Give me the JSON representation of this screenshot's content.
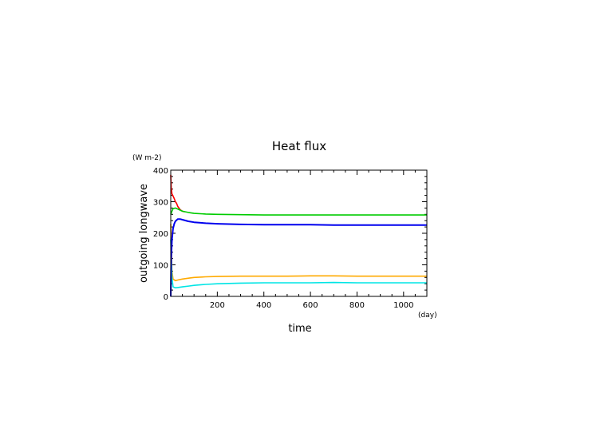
{
  "chart_data": {
    "type": "line",
    "title": "Heat flux",
    "xlabel": "time",
    "ylabel": "outgoing longwave",
    "xunit": "(day)",
    "yunit": "(W m-2)",
    "xlim": [
      0,
      1100
    ],
    "ylim": [
      0,
      400
    ],
    "xticks": [
      "200",
      "400",
      "600",
      "800",
      "1000"
    ],
    "yticks": [
      "0",
      "100",
      "200",
      "300",
      "400"
    ],
    "grid": false,
    "series": [
      {
        "color": "#ff0000",
        "x": [
          0,
          2,
          5,
          10,
          15,
          20,
          25,
          30,
          40,
          50,
          60
        ],
        "y": [
          385,
          345,
          325,
          318,
          310,
          300,
          295,
          285,
          275,
          270,
          268
        ]
      },
      {
        "color": "#00cc00",
        "x": [
          0,
          5,
          10,
          20,
          30,
          50,
          75,
          100,
          150,
          200,
          300,
          400,
          500,
          600,
          700,
          800,
          900,
          1000,
          1100
        ],
        "y": [
          260,
          270,
          278,
          280,
          277,
          270,
          266,
          263,
          261,
          260,
          259,
          258,
          258,
          258,
          258,
          258,
          258,
          258,
          258
        ]
      },
      {
        "color": "#ffaa00",
        "x": [
          0,
          5,
          10,
          20,
          30,
          50,
          80,
          100,
          150,
          200,
          300,
          400,
          500,
          600,
          700,
          800,
          900,
          1000,
          1100
        ],
        "y": [
          230,
          80,
          55,
          50,
          52,
          55,
          58,
          60,
          62,
          63,
          64,
          64,
          64,
          65,
          65,
          64,
          64,
          64,
          64
        ]
      },
      {
        "color": "#00e5e5",
        "x": [
          0,
          5,
          10,
          20,
          30,
          50,
          80,
          100,
          150,
          200,
          300,
          400,
          500,
          600,
          700,
          800,
          900,
          1000,
          1100
        ],
        "y": [
          180,
          60,
          30,
          27,
          28,
          30,
          33,
          35,
          38,
          40,
          42,
          43,
          43,
          43,
          44,
          43,
          43,
          43,
          43
        ]
      },
      {
        "color": "#0000ee",
        "x": [
          0,
          2,
          5,
          10,
          15,
          20,
          30,
          40,
          50,
          75,
          100,
          150,
          200,
          300,
          400,
          500,
          600,
          700,
          800,
          900,
          1000,
          1100
        ],
        "y": [
          0,
          120,
          180,
          215,
          230,
          238,
          245,
          245,
          243,
          238,
          235,
          232,
          230,
          228,
          227,
          227,
          227,
          226,
          226,
          226,
          226,
          226
        ]
      }
    ]
  }
}
